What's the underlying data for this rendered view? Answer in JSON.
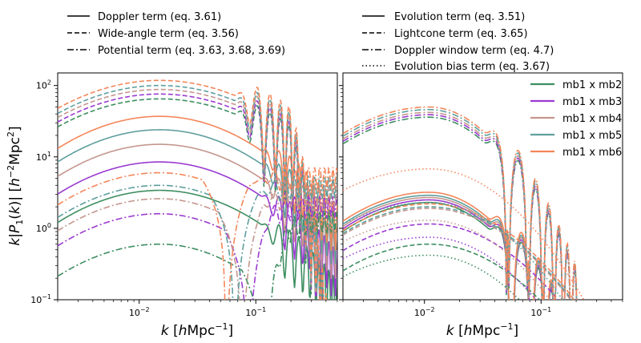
{
  "figure": {
    "ylabel": "k|P1(k)| [h^-2 Mpc^2]",
    "xlabel": "k [hMpc^-1]"
  },
  "colors": {
    "mb2": "#3e8e61",
    "mb3": "#9a3ad0",
    "mb4": "#c4968e",
    "mb5": "#5e9f9d",
    "mb6": "#f4865a"
  },
  "chart_data": [
    {
      "type": "line",
      "panel": "left",
      "xscale": "log",
      "yscale": "log",
      "xlim": [
        0.002,
        0.5
      ],
      "ylim": [
        0.1,
        150
      ],
      "x_ticks": [
        0.01,
        0.1
      ],
      "x_tick_labels": [
        "10^-2",
        "10^-1"
      ],
      "y_ticks": [
        0.1,
        1,
        10,
        100
      ],
      "y_tick_labels": [
        "10^-1",
        "10^0",
        "10^1",
        "10^2"
      ],
      "xlabel": "k [hMpc^-1]",
      "ylabel": "k|P1(k)| [h^-2 Mpc^2]",
      "legend_location": "above",
      "legend": [
        {
          "label": "Doppler term (eq. 3.61)",
          "style": "solid"
        },
        {
          "label": "Wide-angle term (eq. 3.56)",
          "style": "dashed"
        },
        {
          "label": "Potential term (eq. 3.63, 3.68, 3.69)",
          "style": "dashdot"
        }
      ],
      "series_groups": [
        {
          "term": "Doppler",
          "style": "solid",
          "peak_k": 0.015,
          "peaks": {
            "mb1 x mb2": 3.4,
            "mb1 x mb3": 8.5,
            "mb1 x mb4": 15,
            "mb1 x mb5": 24,
            "mb1 x mb6": 37
          }
        },
        {
          "term": "Wide-angle",
          "style": "dashed",
          "peak_k": 0.015,
          "peaks": {
            "mb1 x mb2": 65,
            "mb1 x mb3": 76,
            "mb1 x mb4": 88,
            "mb1 x mb5": 100,
            "mb1 x mb6": 118
          }
        },
        {
          "term": "Potential",
          "style": "dashdot",
          "peak_k": 0.015,
          "peaks": {
            "mb1 x mb2": 0.6,
            "mb1 x mb3": 1.6,
            "mb1 x mb4": 2.6,
            "mb1 x mb5": 4.0,
            "mb1 x mb6": 6.0
          },
          "zero_crossing_k": {
            "mb1 x mb2": 0.12,
            "mb1 x mb3": 0.085,
            "mb1 x mb4": 0.075,
            "mb1 x mb5": 0.065,
            "mb1 x mb6": 0.055
          },
          "high_k_value": {
            "mb1 x mb2": 1.3,
            "mb1 x mb3": 2.1,
            "mb1 x mb4": 3.0,
            "mb1 x mb5": 3.9,
            "mb1 x mb6": 5.3
          }
        }
      ]
    },
    {
      "type": "line",
      "panel": "right",
      "xscale": "log",
      "yscale": "log",
      "xlim": [
        0.002,
        0.5
      ],
      "ylim": [
        0.1,
        150
      ],
      "x_ticks": [
        0.01,
        0.1
      ],
      "x_tick_labels": [
        "10^-2",
        "10^-1"
      ],
      "xlabel": "k [hMpc^-1]",
      "legend_location": "above",
      "legend": [
        {
          "label": "Evolution term (eq. 3.51)",
          "style": "solid"
        },
        {
          "label": "Lightcone term (eq. 3.65)",
          "style": "dashed"
        },
        {
          "label": "Doppler window term (eq. 4.7)",
          "style": "dashdot"
        },
        {
          "label": "Evolution bias term (eq. 3.67)",
          "style": "dotted"
        }
      ],
      "color_legend": {
        "location": "upper right",
        "entries": [
          "mb1 x mb2",
          "mb1 x mb3",
          "mb1 x mb4",
          "mb1 x mb5",
          "mb1 x mb6"
        ]
      },
      "series_groups": [
        {
          "term": "Evolution",
          "style": "solid",
          "peak_k": 0.011,
          "peaks": {
            "mb1 x mb2": 2.3,
            "mb1 x mb3": 2.5,
            "mb1 x mb4": 2.7,
            "mb1 x mb5": 2.9,
            "mb1 x mb6": 3.2
          }
        },
        {
          "term": "Lightcone",
          "style": "dashed",
          "peak_k": 0.011,
          "peaks": {
            "mb1 x mb2": 0.6,
            "mb1 x mb3": 1.15,
            "mb1 x mb4": 1.9,
            "mb1 x mb5": 2.0,
            "mb1 x mb6": 2.2
          }
        },
        {
          "term": "Doppler window",
          "style": "dashdot",
          "peak_k": 0.011,
          "peaks": {
            "mb1 x mb2": 36,
            "mb1 x mb3": 39,
            "mb1 x mb4": 42,
            "mb1 x mb5": 46,
            "mb1 x mb6": 50
          }
        },
        {
          "term": "Evolution bias",
          "style": "dotted",
          "peak_k": 0.011,
          "peaks": {
            "mb1 x mb2": 0.42,
            "mb1 x mb3": 0.75,
            "mb1 x mb4": 1.3,
            "mb1 x mb5": 2.3,
            "mb1 x mb6": 6.8
          }
        }
      ]
    }
  ]
}
